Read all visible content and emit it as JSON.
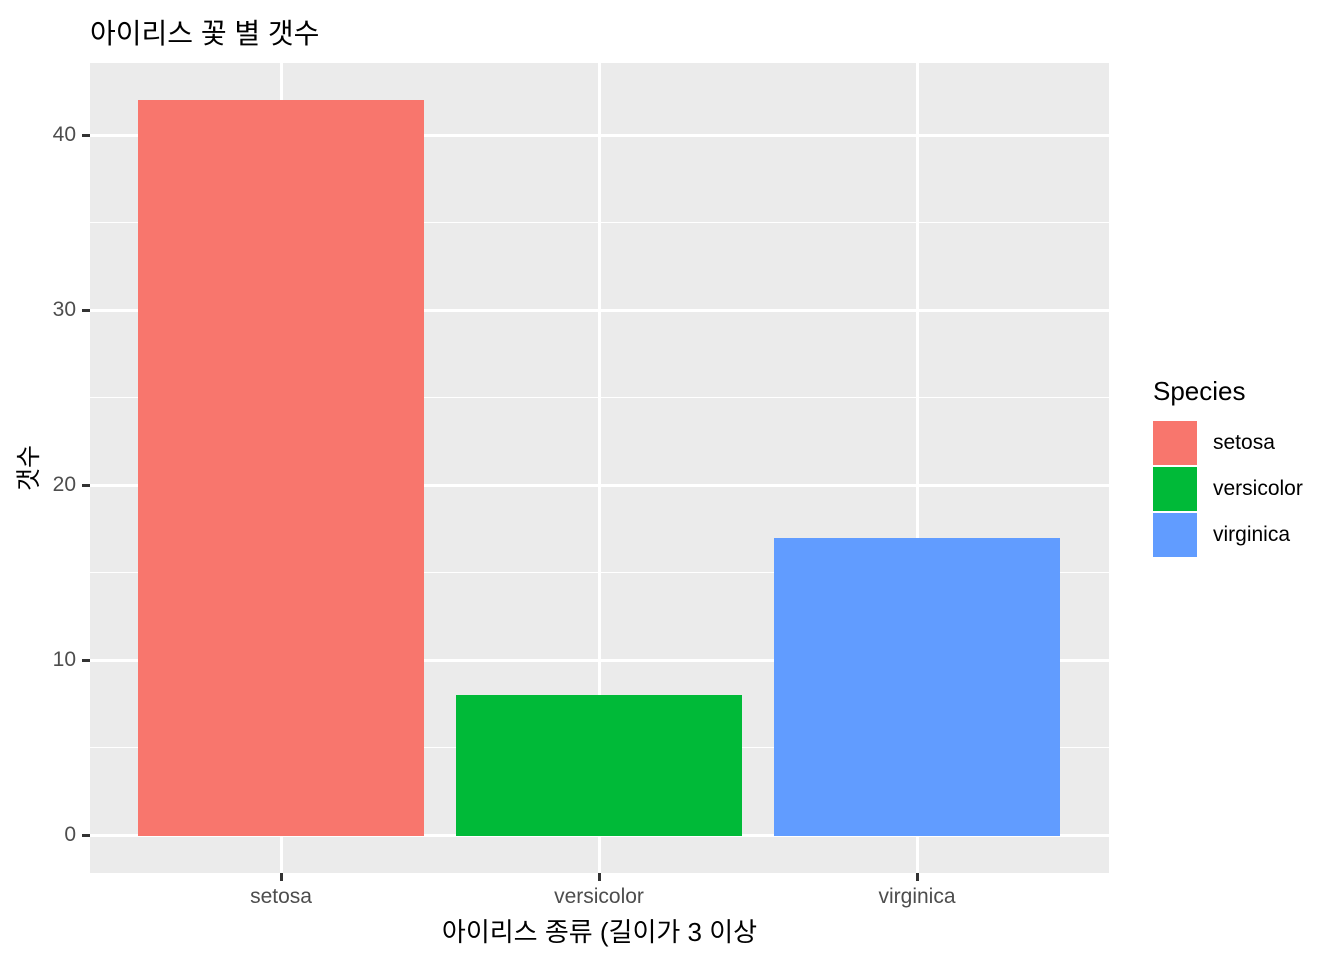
{
  "chart_data": {
    "type": "bar",
    "title": "아이리스 꽃 별 갯수",
    "xlabel": "아이리스 종류 (길이가 3 이상",
    "ylabel": "갯수",
    "categories": [
      "setosa",
      "versicolor",
      "virginica"
    ],
    "values": [
      42,
      8,
      17
    ],
    "bar_colors": [
      "#F8766D",
      "#00BA38",
      "#619CFF"
    ],
    "ylim": [
      0,
      44
    ],
    "yticks": [
      0,
      10,
      20,
      30,
      40
    ],
    "yticks_minor": [
      5,
      15,
      25,
      35
    ],
    "grid": "white major and minor horizontal lines, white vertical lines at category centers, on gray panel",
    "panel_background": "#EBEBEB",
    "gridline_color": "#FFFFFF",
    "axis_text_color": "#4D4D4D",
    "legend": {
      "title": "Species",
      "position": "right",
      "entries": [
        {
          "label": "setosa",
          "color": "#F8766D"
        },
        {
          "label": "versicolor",
          "color": "#00BA38"
        },
        {
          "label": "virginica",
          "color": "#619CFF"
        }
      ]
    }
  }
}
